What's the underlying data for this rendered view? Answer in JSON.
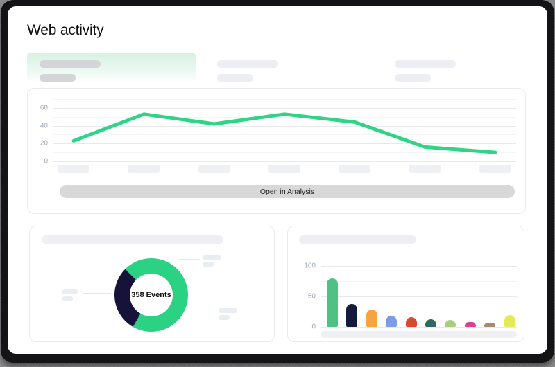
{
  "window": {
    "title": "Web activity"
  },
  "colors": {
    "accent_green": "#2fd487",
    "navy": "#171239",
    "tab_active_top": "#d6f1e1",
    "button_bg": "#d8d8d8",
    "skeleton": "#eceef3",
    "skeleton_dark": "#d4d5d8",
    "card_border": "#e9eaf0",
    "grid_major": "#e7e9ef",
    "grid_minor": "#f3f4f8",
    "tick_text": "#9fa8b8"
  },
  "tabs": [
    {
      "name": "tab-1",
      "active": true,
      "label_placeholder": true
    },
    {
      "name": "tab-2",
      "active": false,
      "label_placeholder": true
    },
    {
      "name": "tab-3",
      "active": false,
      "label_placeholder": true
    }
  ],
  "line_card": {
    "button_label": "Open in Analysis"
  },
  "donut_card": {
    "center_label": "358 Events"
  },
  "chart_data": [
    {
      "id": "web-activity-trend",
      "type": "line",
      "x_labels_placeholder": true,
      "x_points": 7,
      "values": [
        23,
        53,
        42,
        53,
        44,
        16,
        10
      ],
      "yticks": [
        0,
        20,
        40,
        60
      ],
      "ylim": [
        0,
        70
      ],
      "grid": "horizontal",
      "line_color": "#2fd487"
    },
    {
      "id": "events-breakdown",
      "type": "pie",
      "center_label": "358 Events",
      "total_events": 358,
      "segments": [
        {
          "color": "#2bd284",
          "share_pct": 70.8,
          "label_placeholder": true
        },
        {
          "color": "#171239",
          "share_pct": 29.2,
          "label_placeholder": true
        }
      ],
      "arcs": [
        {
          "color": "#2bd284",
          "from_deg": 0,
          "to_deg": 210
        },
        {
          "color": "#171239",
          "from_deg": 210,
          "to_deg": 315
        },
        {
          "color": "#2bd284",
          "from_deg": 315,
          "to_deg": 360
        }
      ],
      "legend": "placeholder-callouts"
    },
    {
      "id": "top-categories",
      "type": "bar",
      "x_labels_placeholder": true,
      "values": [
        80,
        37,
        28,
        18,
        16,
        12,
        11,
        8,
        7,
        19
      ],
      "colors": [
        "#4fc183",
        "#151b3e",
        "#f8a33f",
        "#7e9be8",
        "#da4a2e",
        "#2e6b5c",
        "#a5cf7c",
        "#df3d96",
        "#a78b6d",
        "#e2ea55"
      ],
      "yticks": [
        0,
        50,
        100
      ],
      "ylim": [
        0,
        110
      ],
      "grid_step": 25,
      "grid": "horizontal"
    }
  ]
}
